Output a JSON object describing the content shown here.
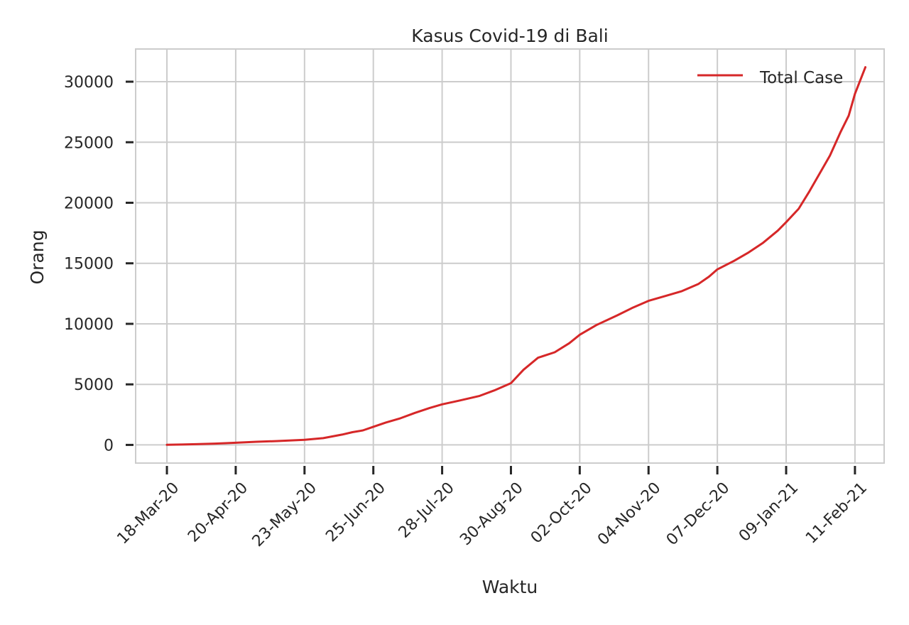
{
  "chart_data": {
    "type": "line",
    "title": "Kasus Covid-19 di Bali",
    "xlabel": "Waktu",
    "ylabel": "Orang",
    "xlim": [
      "2020-03-03",
      "2021-02-25"
    ],
    "ylim": [
      -1500,
      32700
    ],
    "grid": true,
    "legend_position": "top-right",
    "x_tick_labels": [
      "18-Mar-20",
      "20-Apr-20",
      "23-May-20",
      "25-Jun-20",
      "28-Jul-20",
      "30-Aug-20",
      "02-Oct-20",
      "04-Nov-20",
      "07-Dec-20",
      "09-Jan-21",
      "11-Feb-21"
    ],
    "x_tick_dates": [
      "2020-03-18",
      "2020-04-20",
      "2020-05-23",
      "2020-06-25",
      "2020-07-28",
      "2020-08-30",
      "2020-10-02",
      "2020-11-04",
      "2020-12-07",
      "2021-01-09",
      "2021-02-11"
    ],
    "y_ticks": [
      0,
      5000,
      10000,
      15000,
      20000,
      25000,
      30000
    ],
    "y_tick_labels": [
      "0",
      "5000",
      "10000",
      "15000",
      "20000",
      "25000",
      "30000"
    ],
    "series": [
      {
        "name": "Total Case",
        "color": "#d62728",
        "x": [
          "2020-03-18",
          "2020-03-25",
          "2020-04-01",
          "2020-04-10",
          "2020-04-20",
          "2020-04-30",
          "2020-05-10",
          "2020-05-23",
          "2020-06-01",
          "2020-06-10",
          "2020-06-15",
          "2020-06-20",
          "2020-06-25",
          "2020-07-01",
          "2020-07-08",
          "2020-07-15",
          "2020-07-22",
          "2020-07-28",
          "2020-08-05",
          "2020-08-15",
          "2020-08-22",
          "2020-08-30",
          "2020-09-05",
          "2020-09-12",
          "2020-09-20",
          "2020-09-27",
          "2020-10-02",
          "2020-10-10",
          "2020-10-20",
          "2020-10-27",
          "2020-11-04",
          "2020-11-12",
          "2020-11-20",
          "2020-11-28",
          "2020-12-03",
          "2020-12-07",
          "2020-12-15",
          "2020-12-22",
          "2020-12-29",
          "2021-01-05",
          "2021-01-09",
          "2021-01-15",
          "2021-01-20",
          "2021-01-25",
          "2021-01-30",
          "2021-02-04",
          "2021-02-08",
          "2021-02-11",
          "2021-02-16"
        ],
        "y": [
          10,
          30,
          60,
          110,
          180,
          260,
          320,
          420,
          560,
          850,
          1050,
          1200,
          1500,
          1850,
          2200,
          2650,
          3050,
          3350,
          3650,
          4050,
          4500,
          5100,
          6200,
          7200,
          7650,
          8400,
          9100,
          9900,
          10700,
          11300,
          11900,
          12300,
          12700,
          13300,
          13900,
          14500,
          15200,
          15900,
          16700,
          17700,
          18400,
          19500,
          20900,
          22400,
          23900,
          25800,
          27200,
          29000,
          31200
        ]
      }
    ]
  }
}
